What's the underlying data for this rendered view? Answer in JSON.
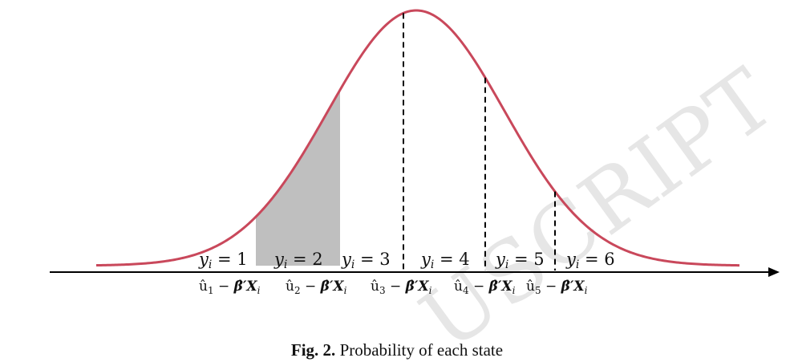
{
  "watermark": "USCRIPT",
  "caption": {
    "prefix": "Fig. 2.",
    "text": "Probability of each state"
  },
  "states": [
    {
      "label": "y",
      "sub": "i",
      "eq": " = 1"
    },
    {
      "label": "y",
      "sub": "i",
      "eq": " = 2"
    },
    {
      "label": "y",
      "sub": "i",
      "eq": " = 3"
    },
    {
      "label": "y",
      "sub": "i",
      "eq": " = 4"
    },
    {
      "label": "y",
      "sub": "i",
      "eq": " = 5"
    },
    {
      "label": "y",
      "sub": "i",
      "eq": " = 6"
    }
  ],
  "thresholds": [
    {
      "u": "û",
      "idx": "1",
      "minus": " − ",
      "beta": "β̂′X",
      "sub": "i"
    },
    {
      "u": "û",
      "idx": "2",
      "minus": " − ",
      "beta": "β̂′X",
      "sub": "i"
    },
    {
      "u": "û",
      "idx": "3",
      "minus": " − ",
      "beta": "β̂′X",
      "sub": "i"
    },
    {
      "u": "û",
      "idx": "4",
      "minus": " − ",
      "beta": "β̂′X",
      "sub": "i"
    },
    {
      "u": "û",
      "idx": "5",
      "minus": " − ",
      "beta": "β̂′X",
      "sub": "i"
    }
  ],
  "colors": {
    "curve": "#c9485b",
    "shade": "#bfbfbf",
    "axis": "#000000",
    "dash": "#000000"
  }
}
